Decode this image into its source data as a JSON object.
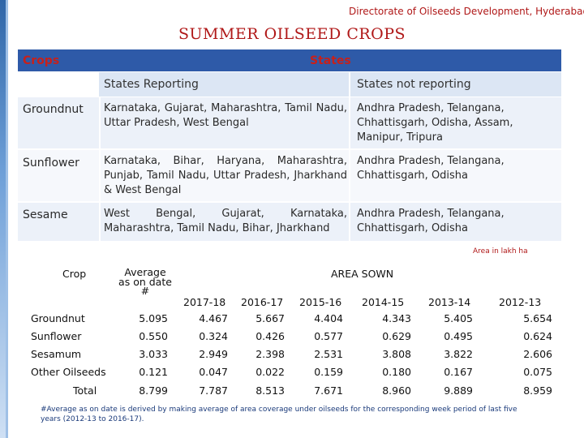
{
  "header": {
    "org": "Directorate of Oilseeds Development, Hyderabad",
    "title": "SUMMER OILSEED CROPS"
  },
  "top_table": {
    "col_crops": "Crops",
    "col_states": "States",
    "sub_reporting": "States Reporting",
    "sub_not_reporting": "States not reporting",
    "rows": [
      {
        "crop": "Groundnut",
        "reporting": "Karnataka, Gujarat, Maharashtra, Tamil Nadu, Uttar Pradesh, West Bengal",
        "not_reporting": "Andhra Pradesh, Telangana, Chhattisgarh, Odisha, Assam, Manipur, Tripura"
      },
      {
        "crop": "Sunflower",
        "reporting": "Karnataka, Bihar, Haryana, Maharashtra, Punjab, Tamil Nadu, Uttar Pradesh, Jharkhand & West Bengal",
        "not_reporting": "Andhra Pradesh, Telangana, Chhattisgarh, Odisha"
      },
      {
        "crop": "Sesame",
        "reporting": "West Bengal, Gujarat, Karnataka, Maharashtra, Tamil Nadu, Bihar, Jharkhand",
        "not_reporting": "Andhra Pradesh, Telangana, Chhattisgarh, Odisha"
      }
    ]
  },
  "area_note": "Area in lakh ha",
  "area_table": {
    "col_crop": "Crop",
    "col_average": "Average as on date #",
    "col_area": "AREA SOWN",
    "years": [
      "2017-18",
      "2016-17",
      "2015-16",
      "2014-15",
      "2013-14",
      "2012-13"
    ],
    "rows": [
      {
        "crop": "Groundnut",
        "average": "5.095",
        "values": [
          "4.467",
          "5.667",
          "4.404",
          "4.343",
          "5.405",
          "5.654"
        ]
      },
      {
        "crop": "Sunflower",
        "average": "0.550",
        "values": [
          "0.324",
          "0.426",
          "0.577",
          "0.629",
          "0.495",
          "0.624"
        ]
      },
      {
        "crop": "Sesamum",
        "average": "3.033",
        "values": [
          "2.949",
          "2.398",
          "2.531",
          "3.808",
          "3.822",
          "2.606"
        ]
      },
      {
        "crop": "Other Oilseeds",
        "average": "0.121",
        "values": [
          "0.047",
          "0.022",
          "0.159",
          "0.180",
          "0.167",
          "0.075"
        ]
      }
    ],
    "total": {
      "crop": "Total",
      "average": "8.799",
      "values": [
        "7.787",
        "8.513",
        "7.671",
        "8.960",
        "9.889",
        "8.959"
      ]
    }
  },
  "footnote": "#Average as on date is derived by making average of area coverage under oilseeds for the corresponding week period of last five years (2012-13 to 2016-17).",
  "colors": {
    "accent_red": "#c8201a",
    "header_blue": "#2e5aa8",
    "stripe_blue": "#2f66a8"
  }
}
